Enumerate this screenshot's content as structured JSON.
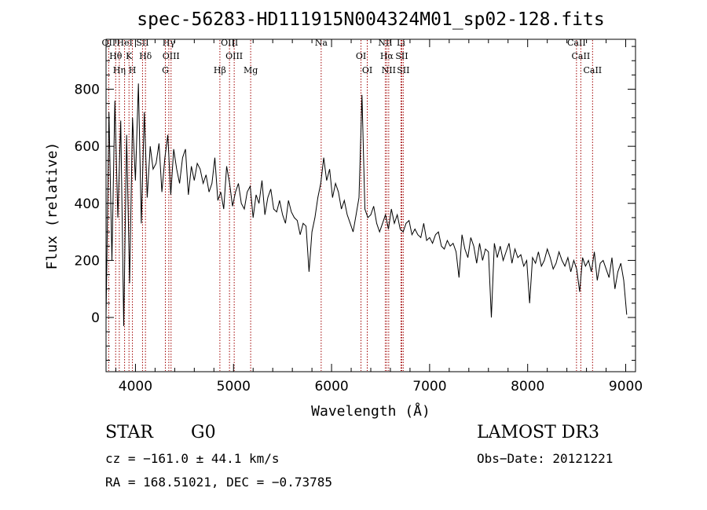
{
  "chart_data": {
    "type": "line",
    "title": "spec-56283-HD111915N004324M01_sp02-128.fits",
    "xlabel": "Wavelength (Å)",
    "ylabel": "Flux (relative)",
    "xlim": [
      3700,
      9100
    ],
    "ylim": [
      -190,
      975
    ],
    "xticks": [
      4000,
      5000,
      6000,
      7000,
      8000,
      9000
    ],
    "yticks": [
      0,
      200,
      400,
      600,
      800
    ],
    "grid": false,
    "series": [
      {
        "name": "flux",
        "x": [
          3700,
          3730,
          3760,
          3790,
          3820,
          3850,
          3880,
          3910,
          3940,
          3970,
          4000,
          4030,
          4060,
          4090,
          4120,
          4150,
          4180,
          4210,
          4240,
          4270,
          4300,
          4330,
          4360,
          4390,
          4420,
          4450,
          4480,
          4510,
          4540,
          4570,
          4600,
          4630,
          4660,
          4690,
          4720,
          4750,
          4780,
          4810,
          4840,
          4870,
          4900,
          4930,
          4960,
          4990,
          5020,
          5050,
          5080,
          5110,
          5140,
          5170,
          5200,
          5230,
          5260,
          5290,
          5320,
          5350,
          5380,
          5410,
          5440,
          5470,
          5500,
          5530,
          5560,
          5590,
          5620,
          5650,
          5680,
          5710,
          5740,
          5770,
          5800,
          5830,
          5860,
          5890,
          5920,
          5950,
          5980,
          6010,
          6040,
          6070,
          6100,
          6130,
          6160,
          6190,
          6220,
          6250,
          6280,
          6310,
          6340,
          6370,
          6400,
          6430,
          6460,
          6490,
          6520,
          6550,
          6580,
          6610,
          6640,
          6670,
          6700,
          6730,
          6760,
          6790,
          6820,
          6850,
          6880,
          6910,
          6940,
          6970,
          7000,
          7030,
          7060,
          7090,
          7120,
          7150,
          7180,
          7210,
          7240,
          7270,
          7300,
          7330,
          7360,
          7390,
          7420,
          7450,
          7480,
          7510,
          7540,
          7570,
          7600,
          7630,
          7660,
          7690,
          7720,
          7750,
          7780,
          7810,
          7840,
          7870,
          7900,
          7930,
          7960,
          7990,
          8020,
          8050,
          8080,
          8110,
          8140,
          8170,
          8200,
          8230,
          8260,
          8290,
          8320,
          8350,
          8380,
          8410,
          8440,
          8470,
          8500,
          8530,
          8560,
          8590,
          8620,
          8650,
          8680,
          8710,
          8740,
          8770,
          8800,
          8830,
          8860,
          8890,
          8920,
          8950,
          8980,
          9010
        ],
        "values": [
          0,
          720,
          200,
          760,
          350,
          690,
          -30,
          640,
          120,
          700,
          480,
          820,
          330,
          720,
          420,
          600,
          520,
          540,
          610,
          440,
          560,
          640,
          430,
          590,
          520,
          470,
          560,
          590,
          430,
          530,
          480,
          540,
          520,
          470,
          500,
          440,
          470,
          560,
          410,
          440,
          380,
          530,
          470,
          390,
          440,
          470,
          400,
          380,
          440,
          460,
          350,
          430,
          400,
          480,
          360,
          420,
          450,
          380,
          370,
          410,
          360,
          330,
          410,
          370,
          350,
          340,
          290,
          330,
          320,
          160,
          300,
          350,
          420,
          470,
          560,
          480,
          520,
          420,
          470,
          440,
          380,
          410,
          360,
          330,
          300,
          360,
          420,
          780,
          380,
          350,
          360,
          390,
          330,
          300,
          330,
          360,
          310,
          380,
          330,
          360,
          310,
          300,
          330,
          340,
          290,
          310,
          290,
          280,
          330,
          270,
          280,
          260,
          290,
          300,
          250,
          240,
          270,
          250,
          260,
          230,
          140,
          290,
          240,
          210,
          280,
          250,
          190,
          260,
          200,
          240,
          230,
          0,
          260,
          210,
          250,
          200,
          230,
          260,
          190,
          240,
          210,
          220,
          180,
          200,
          50,
          210,
          190,
          230,
          180,
          200,
          240,
          210,
          170,
          190,
          230,
          200,
          180,
          210,
          160,
          200,
          170,
          90,
          210,
          180,
          200,
          160,
          230,
          130,
          190,
          200,
          170,
          140,
          210,
          100,
          160,
          190,
          130,
          10
        ]
      }
    ],
    "lines": [
      {
        "label": "OII",
        "x": 3727
      },
      {
        "label": "Hθ",
        "x": 3798
      },
      {
        "label": "Hη",
        "x": 3835
      },
      {
        "label": "HeI",
        "x": 3889
      },
      {
        "label": "K",
        "x": 3934
      },
      {
        "label": "H",
        "x": 3969
      },
      {
        "label": "SII",
        "x": 4072
      },
      {
        "label": "Hδ",
        "x": 4102
      },
      {
        "label": "G",
        "x": 4305
      },
      {
        "label": "Hγ",
        "x": 4340
      },
      {
        "label": "OIII",
        "x": 4363
      },
      {
        "label": "Hβ",
        "x": 4861
      },
      {
        "label": "OIII",
        "x": 4959
      },
      {
        "label": "OIII",
        "x": 5007
      },
      {
        "label": "Mg",
        "x": 5175
      },
      {
        "label": "Na",
        "x": 5894
      },
      {
        "label": "OI",
        "x": 6300
      },
      {
        "label": "OI",
        "x": 6364
      },
      {
        "label": "NII",
        "x": 6548
      },
      {
        "label": "Hα",
        "x": 6563
      },
      {
        "label": "NII",
        "x": 6583
      },
      {
        "label": "Li",
        "x": 6708
      },
      {
        "label": "SII",
        "x": 6716
      },
      {
        "label": "SII",
        "x": 6731
      },
      {
        "label": "CaII",
        "x": 8498
      },
      {
        "label": "CaII",
        "x": 8542
      },
      {
        "label": "CaII",
        "x": 8662
      }
    ]
  },
  "info": {
    "class": "STAR",
    "subclass": "G0",
    "survey": "LAMOST DR3",
    "cz": "cz = −161.0 ± 44.1 km/s",
    "obs_date": "Obs−Date: 20121221",
    "coords": "RA = 168.51021, DEC =  −0.73785"
  },
  "colors": {
    "line_marker": "#a00000",
    "spectrum": "#000000"
  }
}
